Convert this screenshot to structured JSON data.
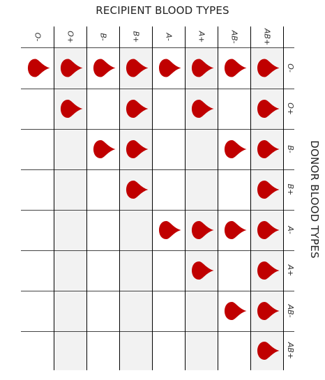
{
  "title": "RECIPIENT BLOOD TYPES",
  "side_title": "DONOR BLOOD TYPES",
  "recipients": [
    "O-",
    "O+",
    "B-",
    "B+",
    "A-",
    "A+",
    "AB-",
    "AB+"
  ],
  "donors": [
    "O-",
    "O+",
    "B-",
    "B+",
    "A-",
    "A+",
    "AB-",
    "AB+"
  ],
  "compatibility": [
    [
      1,
      1,
      1,
      1,
      1,
      1,
      1,
      1
    ],
    [
      0,
      1,
      0,
      1,
      0,
      1,
      0,
      1
    ],
    [
      0,
      0,
      1,
      1,
      0,
      0,
      1,
      1
    ],
    [
      0,
      0,
      0,
      1,
      0,
      0,
      0,
      1
    ],
    [
      0,
      0,
      0,
      0,
      1,
      1,
      1,
      1
    ],
    [
      0,
      0,
      0,
      0,
      0,
      1,
      0,
      1
    ],
    [
      0,
      0,
      0,
      0,
      0,
      0,
      1,
      1
    ],
    [
      0,
      0,
      0,
      0,
      0,
      0,
      0,
      1
    ]
  ],
  "colors": {
    "drop": "#c00000",
    "shade": "#f2f2f2",
    "line": "#000000",
    "row_line": "#444444"
  },
  "icon": "blood-drop-icon"
}
